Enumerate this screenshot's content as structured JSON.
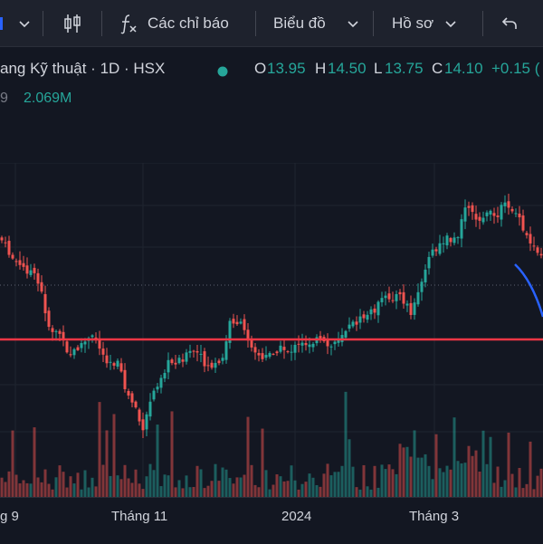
{
  "toolbar": {
    "indicators_label": "Các chỉ báo",
    "chart_label": "Biểu đồ",
    "profile_label": "Hồ sơ"
  },
  "legend": {
    "title": "ang Kỹ thuật · 1D · HSX",
    "open_label": "O",
    "open_value": "13.95",
    "high_label": "H",
    "high_value": "14.50",
    "low_label": "L",
    "low_value": "13.75",
    "close_label": "C",
    "close_value": "14.10",
    "change": "+0.15 ("
  },
  "volume": {
    "left_fragment": "9",
    "value": "2.069M"
  },
  "colors": {
    "up": "#26a69a",
    "down": "#ef5350",
    "support_line": "#f23645",
    "trend_line": "#2962ff",
    "background": "#131722"
  },
  "xaxis": {
    "labels": [
      "g 9",
      "Tháng 11",
      "2024",
      "Tháng 3"
    ]
  }
}
